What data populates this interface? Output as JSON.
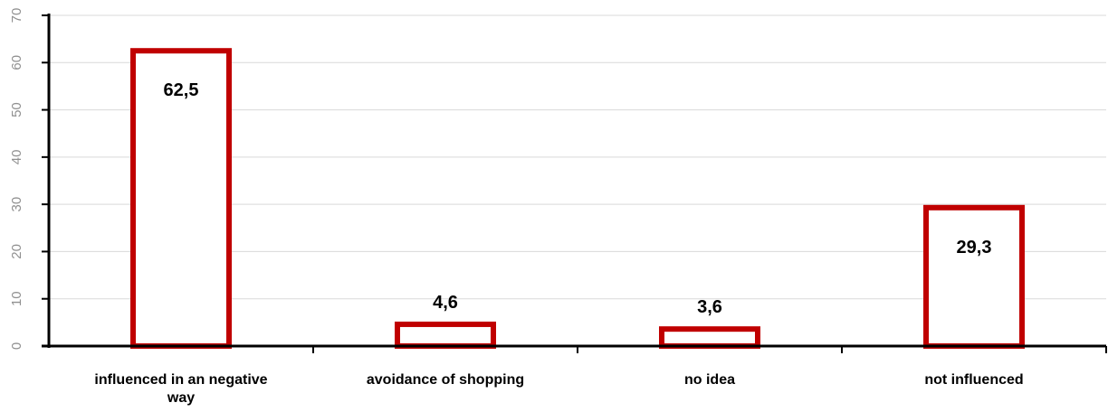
{
  "chart_data": {
    "type": "bar",
    "categories": [
      [
        "influenced in an negative",
        "way"
      ],
      [
        "avoidance of shopping"
      ],
      [
        "no idea"
      ],
      [
        "not influenced"
      ]
    ],
    "values": [
      62.5,
      4.6,
      3.6,
      29.3
    ],
    "data_labels": [
      "62,5",
      "4,6",
      "3,6",
      "29,3"
    ],
    "y_ticks": [
      "0",
      "10",
      "20",
      "30",
      "40",
      "50",
      "60",
      "70"
    ],
    "ylim": [
      0,
      70
    ],
    "grid": true,
    "bar_style": "outline",
    "colors": {
      "bar_outline": "#c00000",
      "bar_fill": "#ffffff",
      "grid": "#d9d9d9",
      "axis": "#000000",
      "tick_text": "#909090"
    }
  }
}
